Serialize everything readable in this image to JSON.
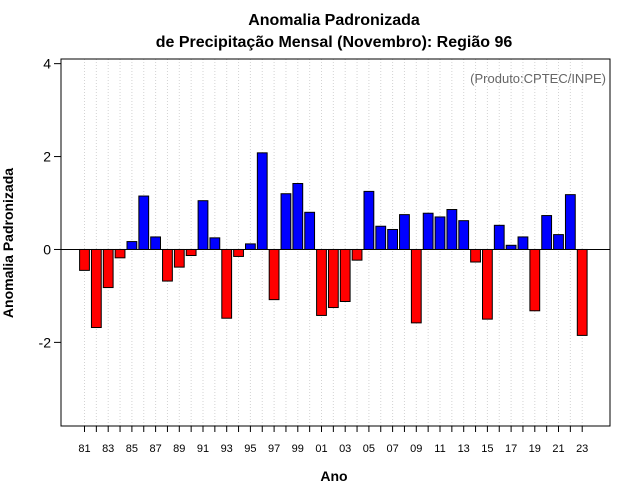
{
  "chart_data": {
    "type": "bar",
    "title": [
      "Anomalia Padronizada",
      "de Precipitação Mensal (Novembro): Região 96"
    ],
    "credit": "(Produto:CPTEC/INPE)",
    "xlabel": "Ano",
    "ylabel": "Anomalia Padronizada",
    "ylim": [
      -3.8,
      4.1
    ],
    "yticks": [
      -2,
      0,
      2,
      4
    ],
    "ytick_labels": [
      "-2",
      "0",
      "2",
      "4"
    ],
    "grid": "vertical dotted",
    "categories": [
      "81",
      "82",
      "83",
      "84",
      "85",
      "86",
      "87",
      "88",
      "89",
      "90",
      "91",
      "92",
      "93",
      "94",
      "95",
      "96",
      "97",
      "98",
      "99",
      "00",
      "01",
      "02",
      "03",
      "04",
      "05",
      "06",
      "07",
      "08",
      "09",
      "10",
      "11",
      "12",
      "13",
      "14",
      "15",
      "16",
      "17",
      "18",
      "19",
      "20",
      "21",
      "22",
      "23"
    ],
    "tick_labels": [
      "81",
      "83",
      "85",
      "87",
      "89",
      "91",
      "93",
      "95",
      "97",
      "99",
      "01",
      "03",
      "05",
      "07",
      "09",
      "11",
      "13",
      "15",
      "17",
      "19",
      "21",
      "23"
    ],
    "values": [
      -0.45,
      -1.68,
      -0.82,
      -0.18,
      0.17,
      1.15,
      0.27,
      -0.68,
      -0.38,
      -0.13,
      1.05,
      0.25,
      -1.48,
      -0.15,
      0.12,
      2.08,
      -1.08,
      1.2,
      1.42,
      0.8,
      -1.42,
      -1.25,
      -1.12,
      -0.23,
      1.25,
      0.5,
      0.43,
      0.75,
      -1.58,
      0.78,
      0.7,
      0.86,
      0.62,
      -0.27,
      -1.5,
      0.52,
      0.09,
      0.27,
      -1.32,
      0.73,
      0.32,
      1.18,
      -1.85
    ],
    "colors": {
      "positive": "#0000ff",
      "negative": "#ff0000",
      "border": "#000000"
    }
  }
}
